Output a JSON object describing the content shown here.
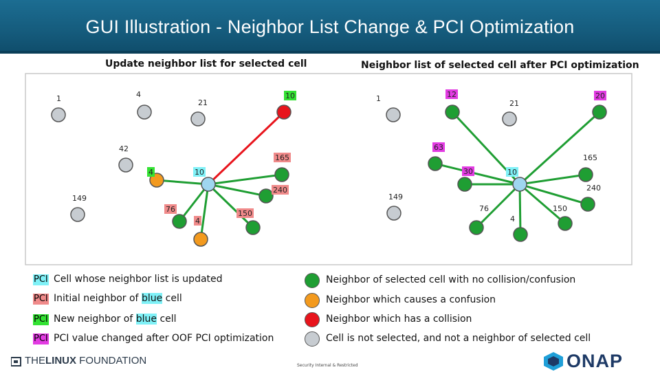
{
  "header": {
    "title": "GUI Illustration - Neighbor List Change & PCI Optimization"
  },
  "panels": [
    {
      "title": "Update neighbor list for selected cell"
    },
    {
      "title": "Neighbor list of selected cell after PCI optimization"
    }
  ],
  "colors": {
    "cell_fill_selected": "#9fd6f0",
    "green": "#1f9e33",
    "orange": "#f39a1e",
    "red": "#e8141c",
    "gray": "#c7ccd1",
    "line_green": "#1f9e33",
    "line_red": "#e8141c",
    "pci_blue": "#7ff1f7",
    "pci_red": "#f08a8a",
    "pci_green": "#33e233",
    "pci_magenta": "#e23be2"
  },
  "diagram_left": {
    "nodes": [
      {
        "id": "1",
        "label": "1",
        "fill": "gray",
        "tag": "none"
      },
      {
        "id": "4a",
        "label": "4",
        "fill": "gray",
        "tag": "none"
      },
      {
        "id": "21",
        "label": "21",
        "fill": "gray",
        "tag": "none"
      },
      {
        "id": "10top",
        "label": "10",
        "fill": "red",
        "tag": "green"
      },
      {
        "id": "42",
        "label": "42",
        "fill": "gray",
        "tag": "none"
      },
      {
        "id": "165",
        "label": "165",
        "fill": "green",
        "tag": "red"
      },
      {
        "id": "4mid",
        "label": "4",
        "fill": "orange",
        "tag": "green"
      },
      {
        "id": "10sel",
        "label": "10",
        "fill": "blue",
        "tag": "blue"
      },
      {
        "id": "240",
        "label": "240",
        "fill": "green",
        "tag": "red"
      },
      {
        "id": "149",
        "label": "149",
        "fill": "gray",
        "tag": "none"
      },
      {
        "id": "76",
        "label": "76",
        "fill": "green",
        "tag": "red"
      },
      {
        "id": "4bot",
        "label": "4",
        "fill": "orange",
        "tag": "red"
      },
      {
        "id": "150",
        "label": "150",
        "fill": "green",
        "tag": "red"
      }
    ]
  },
  "diagram_right": {
    "nodes": [
      {
        "id": "1",
        "label": "1",
        "fill": "gray",
        "tag": "none"
      },
      {
        "id": "12",
        "label": "12",
        "fill": "green",
        "tag": "magenta"
      },
      {
        "id": "21",
        "label": "21",
        "fill": "gray",
        "tag": "none"
      },
      {
        "id": "20",
        "label": "20",
        "fill": "green",
        "tag": "magenta"
      },
      {
        "id": "63",
        "label": "63",
        "fill": "green",
        "tag": "magenta"
      },
      {
        "id": "165",
        "label": "165",
        "fill": "green",
        "tag": "none"
      },
      {
        "id": "30",
        "label": "30",
        "fill": "green",
        "tag": "magenta"
      },
      {
        "id": "10sel",
        "label": "10",
        "fill": "blue",
        "tag": "blue"
      },
      {
        "id": "240",
        "label": "240",
        "fill": "green",
        "tag": "none"
      },
      {
        "id": "149",
        "label": "149",
        "fill": "gray",
        "tag": "none"
      },
      {
        "id": "76",
        "label": "76",
        "fill": "green",
        "tag": "none"
      },
      {
        "id": "4",
        "label": "4",
        "fill": "green",
        "tag": "none"
      },
      {
        "id": "150",
        "label": "150",
        "fill": "green",
        "tag": "none"
      }
    ]
  },
  "legend": {
    "pci_label": "PCI",
    "left_items": [
      {
        "tag": "blue",
        "text": "Cell whose neighbor list is updated"
      },
      {
        "tag": "red",
        "text_pre": "Initial neighbor of ",
        "text_hl": "blue",
        "text_post": " cell"
      },
      {
        "tag": "green",
        "text_pre": "New neighbor of ",
        "text_hl": "blue",
        "text_post": " cell"
      },
      {
        "tag": "magenta",
        "text": "PCI value changed after OOF PCI optimization"
      }
    ],
    "right_items": [
      {
        "fill": "green",
        "text": "Neighbor of selected cell with no collision/confusion"
      },
      {
        "fill": "orange",
        "text": "Neighbor which causes a confusion"
      },
      {
        "fill": "red",
        "text": "Neighbor which has a collision"
      },
      {
        "fill": "gray",
        "text": "Cell is not selected, and not a neighbor of selected cell"
      }
    ]
  },
  "footer": {
    "lf_logo_prefix": "THE",
    "lf_logo_bold": "LINUX",
    "lf_logo_suffix": " FOUNDATION",
    "classification": "Security Internal & Restricted",
    "onap": "ONAP"
  }
}
